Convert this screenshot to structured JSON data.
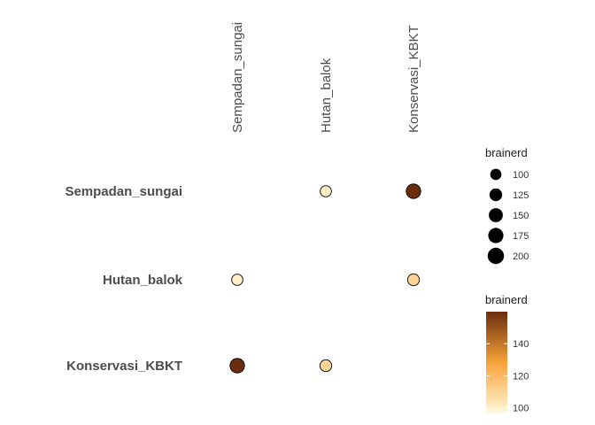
{
  "chart_data": {
    "type": "scatter",
    "title": "",
    "xlabel": "",
    "ylabel": "",
    "grid": false,
    "x_position": "top",
    "categories": [
      "Sempadan_sungai",
      "Hutan_balok",
      "Konservasi_KBKT"
    ],
    "points": [
      {
        "row": "Sempadan_sungai",
        "col": "Hutan_balok",
        "size": 100,
        "color": 100
      },
      {
        "row": "Sempadan_sungai",
        "col": "Konservasi_KBKT",
        "size": 160,
        "color": 160
      },
      {
        "row": "Hutan_balok",
        "col": "Sempadan_sungai",
        "size": 100,
        "color": 100
      },
      {
        "row": "Hutan_balok",
        "col": "Konservasi_KBKT",
        "size": 110,
        "color": 110
      },
      {
        "row": "Konservasi_KBKT",
        "col": "Sempadan_sungai",
        "size": 160,
        "color": 160
      },
      {
        "row": "Konservasi_KBKT",
        "col": "Hutan_balok",
        "size": 110,
        "color": 110
      }
    ],
    "size_legend": {
      "title": "brainerd",
      "breaks": [
        100,
        125,
        150,
        175,
        200
      ],
      "labels": [
        "100",
        "125",
        "150",
        "175",
        "200"
      ],
      "range": [
        100,
        200
      ]
    },
    "color_legend": {
      "title": "brainerd",
      "breaks": [
        100,
        120,
        140
      ],
      "labels": [
        "100",
        "120",
        "140"
      ],
      "range": [
        97,
        160
      ],
      "low_color": "#fff7d6",
      "mid_color": "#f6a23a",
      "high_color": "#6b2d0c"
    },
    "legend_position": "right"
  }
}
